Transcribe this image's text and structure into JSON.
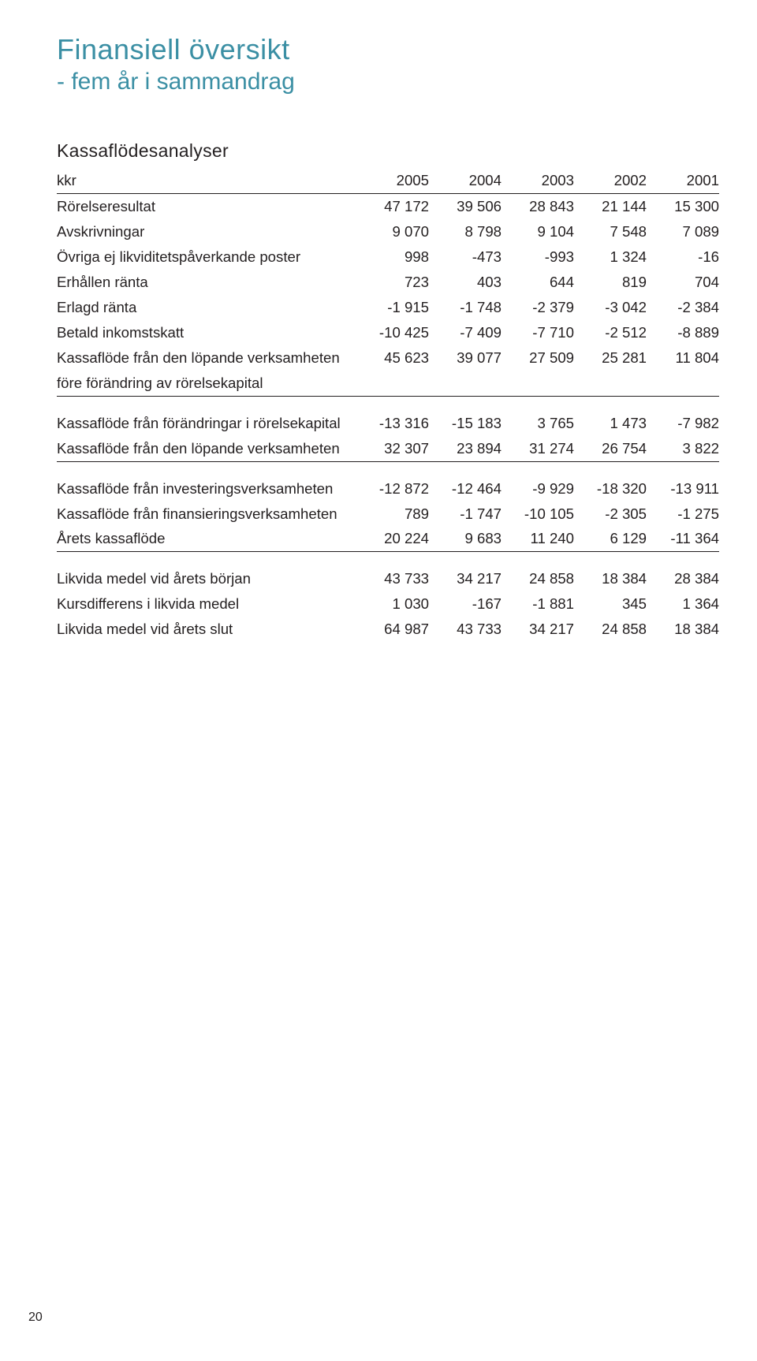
{
  "heading": {
    "title": "Finansiell översikt",
    "subtitle": "- fem år i sammandrag",
    "section": "Kassaflödesanalyser"
  },
  "table": {
    "columns": [
      "kkr",
      "2005",
      "2004",
      "2003",
      "2002",
      "2001"
    ],
    "blocks": [
      {
        "rule_after": true,
        "rows": [
          {
            "label": "Rörelseresultat",
            "values": [
              "47 172",
              "39 506",
              "28 843",
              "21 144",
              "15 300"
            ]
          },
          {
            "label": "Avskrivningar",
            "values": [
              "9 070",
              "8 798",
              "9 104",
              "7 548",
              "7 089"
            ]
          },
          {
            "label": "Övriga ej likviditetspåverkande poster",
            "values": [
              "998",
              "-473",
              "-993",
              "1 324",
              "-16"
            ]
          },
          {
            "label": "Erhållen ränta",
            "values": [
              "723",
              "403",
              "644",
              "819",
              "704"
            ]
          },
          {
            "label": "Erlagd ränta",
            "values": [
              "-1 915",
              "-1 748",
              "-2 379",
              "-3 042",
              "-2 384"
            ]
          },
          {
            "label": "Betald inkomstskatt",
            "values": [
              "-10 425",
              "-7 409",
              "-7 710",
              "-2 512",
              "-8 889"
            ]
          },
          {
            "label": "Kassaflöde från den löpande verksamheten före förändring av rörelsekapital",
            "values": [
              "45 623",
              "39 077",
              "27 509",
              "25 281",
              "11 804"
            ]
          }
        ]
      },
      {
        "rule_after": true,
        "rows": [
          {
            "label": "Kassaflöde från förändringar i rörelsekapital",
            "values": [
              "-13 316",
              "-15 183",
              "3 765",
              "1 473",
              "-7 982"
            ]
          },
          {
            "label": "Kassaflöde från den löpande verksamheten",
            "values": [
              "32 307",
              "23 894",
              "31 274",
              "26 754",
              "3 822"
            ]
          }
        ]
      },
      {
        "rule_after": true,
        "rows": [
          {
            "label": "Kassaflöde från investeringsverksamheten",
            "values": [
              "-12 872",
              "-12 464",
              "-9 929",
              "-18 320",
              "-13 911"
            ]
          },
          {
            "label": "Kassaflöde från finansieringsverksamheten",
            "values": [
              "789",
              "-1 747",
              "-10 105",
              "-2 305",
              "-1 275"
            ]
          },
          {
            "label": "Årets kassaflöde",
            "values": [
              "20 224",
              "9 683",
              "11 240",
              "6 129",
              "-11 364"
            ]
          }
        ]
      },
      {
        "rule_after": false,
        "rows": [
          {
            "label": "Likvida medel vid årets början",
            "values": [
              "43 733",
              "34 217",
              "24 858",
              "18 384",
              "28 384"
            ]
          },
          {
            "label": "Kursdifferens i likvida medel",
            "values": [
              "1 030",
              "-167",
              "-1 881",
              "345",
              "1 364"
            ]
          },
          {
            "label": "Likvida medel vid årets slut",
            "values": [
              "64 987",
              "43 733",
              "34 217",
              "24 858",
              "18 384"
            ]
          }
        ]
      }
    ]
  },
  "page_number": "20"
}
